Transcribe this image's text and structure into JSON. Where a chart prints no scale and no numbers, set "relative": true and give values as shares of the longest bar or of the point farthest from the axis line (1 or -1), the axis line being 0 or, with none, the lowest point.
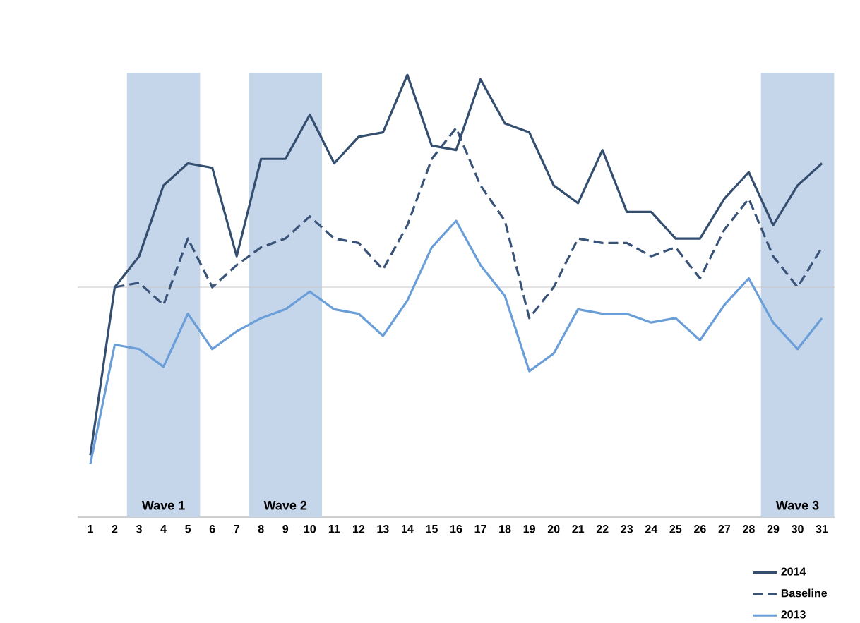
{
  "chart_data": {
    "type": "line",
    "relative": true,
    "categories": [
      "1",
      "2",
      "3",
      "4",
      "5",
      "6",
      "7",
      "8",
      "9",
      "10",
      "11",
      "12",
      "13",
      "14",
      "15",
      "16",
      "17",
      "18",
      "19",
      "20",
      "21",
      "22",
      "23",
      "24",
      "25",
      "26",
      "27",
      "28",
      "29",
      "30",
      "31"
    ],
    "series": [
      {
        "name": "2014",
        "color": "#344e6f",
        "line_style": "solid",
        "values": [
          0.14,
          0.52,
          0.59,
          0.75,
          0.8,
          0.79,
          0.59,
          0.81,
          0.81,
          0.91,
          0.8,
          0.86,
          0.87,
          1,
          0.84,
          0.83,
          0.99,
          0.89,
          0.87,
          0.75,
          0.71,
          0.83,
          0.69,
          0.69,
          0.63,
          0.63,
          0.72,
          0.78,
          0.66,
          0.75,
          0.8
        ]
      },
      {
        "name": "Baseline",
        "color": "#3a5378",
        "line_style": "dashed",
        "values": [
          null,
          0.52,
          0.53,
          0.48,
          0.63,
          0.52,
          0.57,
          0.61,
          0.63,
          0.68,
          0.63,
          0.62,
          0.56,
          0.66,
          0.81,
          0.88,
          0.75,
          0.67,
          0.45,
          0.52,
          0.63,
          0.62,
          0.62,
          0.59,
          0.61,
          0.54,
          0.65,
          0.72,
          0.59,
          0.52,
          0.61
        ]
      },
      {
        "name": "2013",
        "color": "#6a9ed8",
        "line_style": "solid",
        "values": [
          0.12,
          0.39,
          0.38,
          0.34,
          0.46,
          0.38,
          0.42,
          0.45,
          0.47,
          0.51,
          0.47,
          0.46,
          0.41,
          0.49,
          0.61,
          0.67,
          0.57,
          0.5,
          0.33,
          0.37,
          0.47,
          0.46,
          0.46,
          0.44,
          0.45,
          0.4,
          0.48,
          0.54,
          0.44,
          0.38,
          0.45
        ]
      }
    ],
    "ref_lines": [
      {
        "axis": "y",
        "value": 0.52,
        "color": "#c8c8c8"
      }
    ],
    "bands": [
      {
        "axis": "x",
        "from": "3",
        "to": "5",
        "label": "Wave 1",
        "color": "#c5d5ea"
      },
      {
        "axis": "x",
        "from": "8",
        "to": "10",
        "label": "Wave 2",
        "color": "#c5d5ea"
      },
      {
        "axis": "x",
        "from": "29",
        "to": "31",
        "label": "Wave 3",
        "color": "#c5d5ea"
      }
    ],
    "legend": "bottom right",
    "marker": "none",
    "grid": false
  }
}
